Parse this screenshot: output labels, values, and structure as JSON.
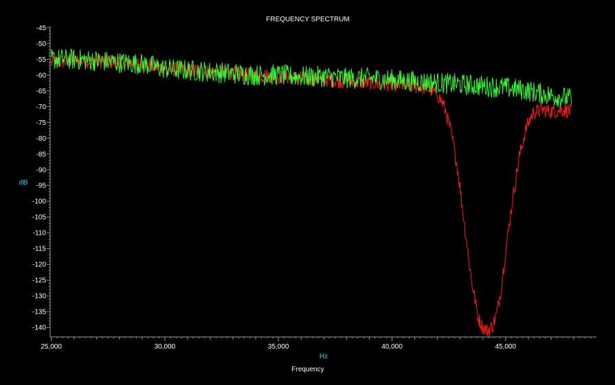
{
  "chart_data": {
    "type": "line",
    "title": "FREQUENCY SPECTRUM",
    "xlabel": "Hz",
    "x_description": "Frequency",
    "ylabel": "dB",
    "xlim": [
      24950,
      49000
    ],
    "ylim": [
      -143,
      -44.5
    ],
    "x_ticks": [
      25000,
      30000,
      35000,
      40000,
      45000
    ],
    "x_tick_labels": [
      "25,000",
      "30,000",
      "35,000",
      "40,000",
      "45,000"
    ],
    "y_ticks": [
      -45,
      -50,
      -55,
      -60,
      -65,
      -70,
      -75,
      -80,
      -85,
      -90,
      -95,
      -100,
      -105,
      -110,
      -115,
      -120,
      -125,
      -130,
      -135,
      -140
    ],
    "grid": false,
    "series": [
      {
        "color": "#ff1a1a",
        "x": [
          25000,
          26000,
          27000,
          28000,
          29000,
          30000,
          31000,
          32000,
          33000,
          34000,
          35000,
          36000,
          37000,
          38000,
          39000,
          40000,
          41000,
          41500,
          42000,
          42300,
          42600,
          42900,
          43200,
          43500,
          43800,
          44000,
          44200,
          44400,
          44600,
          44800,
          45000,
          45300,
          45600,
          45900,
          46200,
          46600,
          47000,
          47500,
          47900
        ],
        "values": [
          -56,
          -55.5,
          -55.5,
          -56,
          -56.5,
          -58,
          -58.5,
          -59,
          -59.5,
          -60,
          -60.5,
          -61,
          -61.5,
          -62,
          -62.5,
          -63,
          -63.5,
          -64,
          -66,
          -70,
          -78,
          -90,
          -108,
          -125,
          -137,
          -140,
          -141,
          -140,
          -136,
          -128,
          -116,
          -100,
          -86,
          -77,
          -72,
          -71,
          -71.5,
          -71,
          -71.5
        ]
      },
      {
        "color": "#33ff33",
        "x": [
          25000,
          26000,
          27000,
          28000,
          29000,
          30000,
          31000,
          32000,
          33000,
          34000,
          35000,
          36000,
          37000,
          38000,
          39000,
          40000,
          41000,
          42000,
          43000,
          44000,
          45000,
          46000,
          47000,
          47900
        ],
        "values": [
          -55,
          -55,
          -55.5,
          -56,
          -56.5,
          -58,
          -58.5,
          -59,
          -59.5,
          -60,
          -60,
          -60.5,
          -60.5,
          -61,
          -61,
          -61.5,
          -62,
          -62.5,
          -63,
          -63.5,
          -64,
          -65,
          -66.5,
          -67.5
        ]
      }
    ]
  }
}
